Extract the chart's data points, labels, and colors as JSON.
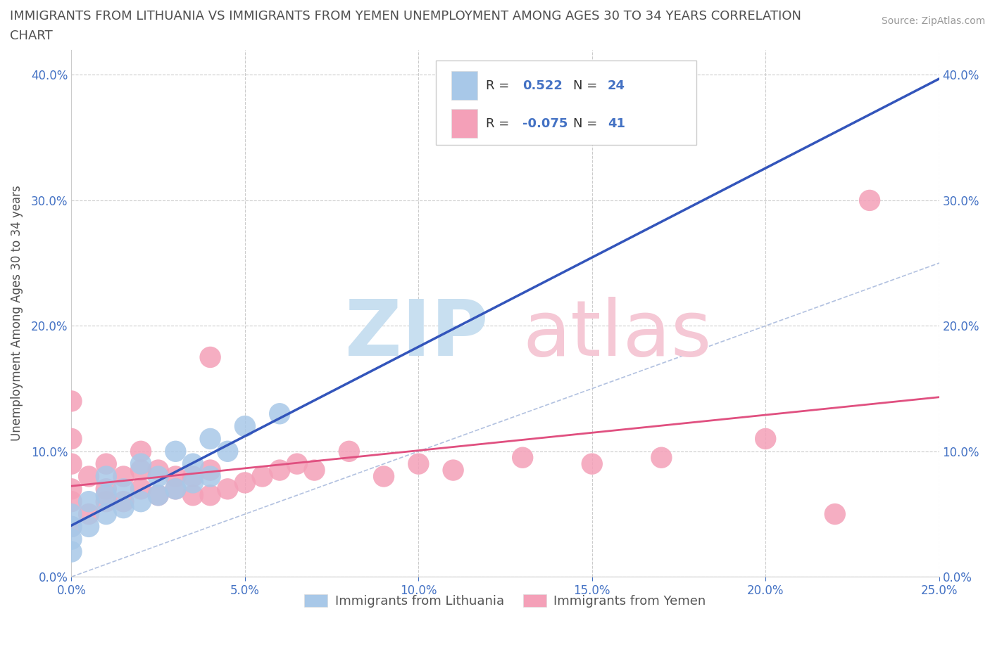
{
  "title_line1": "IMMIGRANTS FROM LITHUANIA VS IMMIGRANTS FROM YEMEN UNEMPLOYMENT AMONG AGES 30 TO 34 YEARS CORRELATION",
  "title_line2": "CHART",
  "source": "Source: ZipAtlas.com",
  "ylabel": "Unemployment Among Ages 30 to 34 years",
  "xlim": [
    0.0,
    0.25
  ],
  "ylim": [
    0.0,
    0.42
  ],
  "x_ticks": [
    0.0,
    0.05,
    0.1,
    0.15,
    0.2,
    0.25
  ],
  "y_ticks": [
    0.0,
    0.1,
    0.2,
    0.3,
    0.4
  ],
  "legend1_r": "0.522",
  "legend1_n": "24",
  "legend2_r": "-0.075",
  "legend2_n": "41",
  "color_lithuania": "#a8c8e8",
  "color_yemen": "#f4a0b8",
  "line_color_lithuania": "#3355bb",
  "line_color_yemen": "#e05080",
  "scatter_size": 480,
  "lithuania_x": [
    0.0,
    0.0,
    0.0,
    0.0,
    0.005,
    0.005,
    0.01,
    0.01,
    0.01,
    0.015,
    0.015,
    0.02,
    0.02,
    0.025,
    0.025,
    0.03,
    0.03,
    0.035,
    0.035,
    0.04,
    0.04,
    0.045,
    0.05,
    0.06
  ],
  "lithuania_y": [
    0.02,
    0.03,
    0.04,
    0.05,
    0.04,
    0.06,
    0.05,
    0.065,
    0.08,
    0.055,
    0.07,
    0.06,
    0.09,
    0.065,
    0.08,
    0.07,
    0.1,
    0.075,
    0.09,
    0.08,
    0.11,
    0.1,
    0.12,
    0.13
  ],
  "yemen_x": [
    0.0,
    0.0,
    0.0,
    0.0,
    0.0,
    0.0,
    0.005,
    0.005,
    0.01,
    0.01,
    0.01,
    0.015,
    0.015,
    0.02,
    0.02,
    0.02,
    0.025,
    0.025,
    0.03,
    0.03,
    0.035,
    0.035,
    0.04,
    0.04,
    0.04,
    0.045,
    0.05,
    0.055,
    0.06,
    0.065,
    0.07,
    0.08,
    0.09,
    0.1,
    0.11,
    0.13,
    0.15,
    0.17,
    0.2,
    0.22,
    0.23
  ],
  "yemen_y": [
    0.04,
    0.06,
    0.07,
    0.09,
    0.11,
    0.14,
    0.05,
    0.08,
    0.06,
    0.07,
    0.09,
    0.06,
    0.08,
    0.07,
    0.085,
    0.1,
    0.065,
    0.085,
    0.07,
    0.08,
    0.065,
    0.08,
    0.065,
    0.085,
    0.175,
    0.07,
    0.075,
    0.08,
    0.085,
    0.09,
    0.085,
    0.1,
    0.08,
    0.09,
    0.085,
    0.095,
    0.09,
    0.095,
    0.11,
    0.05,
    0.3
  ],
  "background_color": "#ffffff",
  "grid_color": "#cccccc",
  "title_color": "#505050",
  "axis_label_color": "#505050",
  "tick_label_color": "#4472c4",
  "watermark_zip_color": "#c8dff0",
  "watermark_atlas_color": "#f5c8d5"
}
